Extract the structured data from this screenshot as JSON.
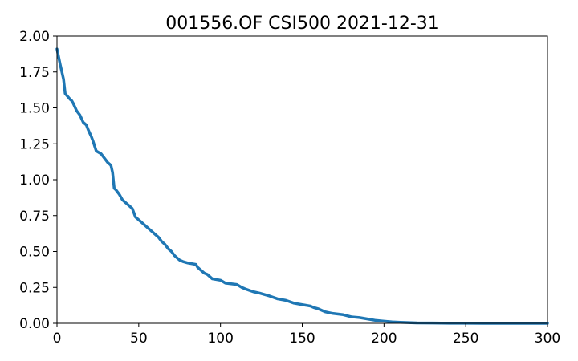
{
  "chart_data": {
    "type": "line",
    "title": "001556.OF CSI500 2021-12-31",
    "xlabel": "",
    "ylabel": "",
    "xlim": [
      0,
      300
    ],
    "ylim": [
      0,
      2.0
    ],
    "x_ticks": [
      0,
      50,
      100,
      150,
      200,
      250,
      300
    ],
    "x_tick_labels": [
      "0",
      "50",
      "100",
      "150",
      "200",
      "250",
      "300"
    ],
    "y_ticks": [
      0,
      0.25,
      0.5,
      0.75,
      1.0,
      1.25,
      1.5,
      1.75,
      2.0
    ],
    "y_tick_labels": [
      "0.00",
      "0.25",
      "0.50",
      "0.75",
      "1.00",
      "1.25",
      "1.50",
      "1.75",
      "2.00"
    ],
    "grid": false,
    "legend": "none",
    "color": "#1f77b4",
    "series": [
      {
        "x": [
          0,
          2,
          4,
          5,
          8,
          9,
          10,
          12,
          14,
          16,
          18,
          19,
          21,
          22,
          24,
          27,
          29,
          31,
          33,
          34,
          35,
          36,
          38,
          40,
          42,
          44,
          46,
          48,
          50,
          53,
          55,
          58,
          60,
          62,
          64,
          66,
          68,
          70,
          72,
          74,
          75,
          77,
          80,
          85,
          86,
          88,
          90,
          92,
          95,
          100,
          103,
          110,
          113,
          115,
          120,
          124,
          130,
          135,
          140,
          145,
          150,
          155,
          157,
          160,
          164,
          168,
          175,
          180,
          185,
          190,
          195,
          200,
          205,
          210,
          215,
          220,
          230,
          240,
          250,
          260,
          270,
          280,
          290,
          300
        ],
        "y": [
          1.91,
          1.8,
          1.7,
          1.6,
          1.56,
          1.55,
          1.53,
          1.48,
          1.45,
          1.4,
          1.38,
          1.35,
          1.3,
          1.27,
          1.2,
          1.18,
          1.15,
          1.12,
          1.1,
          1.05,
          0.94,
          0.93,
          0.9,
          0.86,
          0.84,
          0.82,
          0.8,
          0.74,
          0.72,
          0.69,
          0.67,
          0.64,
          0.62,
          0.6,
          0.57,
          0.55,
          0.52,
          0.5,
          0.47,
          0.45,
          0.44,
          0.43,
          0.42,
          0.41,
          0.39,
          0.37,
          0.35,
          0.34,
          0.31,
          0.3,
          0.28,
          0.27,
          0.25,
          0.24,
          0.22,
          0.21,
          0.19,
          0.17,
          0.16,
          0.14,
          0.13,
          0.12,
          0.11,
          0.1,
          0.08,
          0.07,
          0.06,
          0.045,
          0.04,
          0.03,
          0.02,
          0.015,
          0.01,
          0.007,
          0.005,
          0.003,
          0.002,
          0.001,
          0.0005,
          0.0003,
          0.0002,
          0.0001,
          0.0001,
          0.0
        ]
      }
    ]
  }
}
